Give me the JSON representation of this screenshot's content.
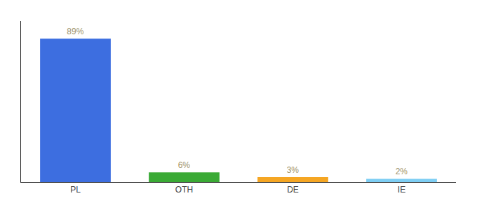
{
  "chart_data": {
    "type": "bar",
    "categories": [
      "PL",
      "OTH",
      "DE",
      "IE"
    ],
    "values": [
      89,
      6,
      3,
      2
    ],
    "value_labels": [
      "89%",
      "6%",
      "3%",
      "2%"
    ],
    "colors": [
      "#3d6ee0",
      "#3aaa35",
      "#f5a623",
      "#7ecef4"
    ],
    "ylim": [
      0,
      100
    ],
    "grid": false,
    "data_labels": true,
    "tick_labels": "x"
  }
}
